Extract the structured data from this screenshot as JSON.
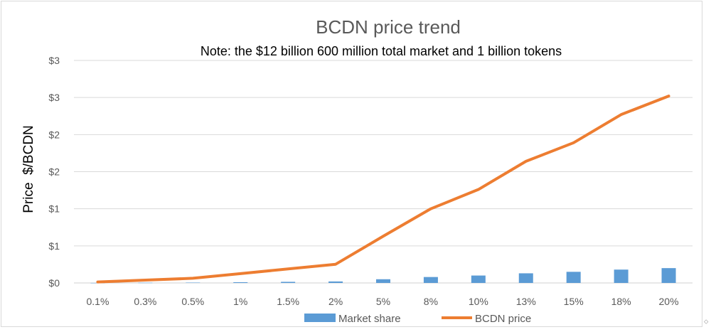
{
  "chart_data": {
    "type": "bar+line",
    "title": "BCDN price trend",
    "subtitle": "Note: the $12 billion 600 million total market and 1 billion tokens",
    "ylabel": "Price  $/BCDN",
    "xlabel": "",
    "categories": [
      "0.1%",
      "0.3%",
      "0.5%",
      "1%",
      "1.5%",
      "2%",
      "5%",
      "8%",
      "10%",
      "13%",
      "15%",
      "18%",
      "20%"
    ],
    "y_tick_labels": [
      "$0",
      "$1",
      "$1",
      "$2",
      "$2",
      "$3",
      "$3"
    ],
    "ylim": [
      0,
      3
    ],
    "grid": true,
    "legend_position": "bottom",
    "series": [
      {
        "name": "Market share",
        "type": "bar",
        "color": "#5b9bd5",
        "values": [
          0.001,
          0.003,
          0.005,
          0.01,
          0.015,
          0.02,
          0.05,
          0.08,
          0.1,
          0.13,
          0.15,
          0.18,
          0.2
        ]
      },
      {
        "name": "BCDN price",
        "type": "line",
        "color": "#ed7d31",
        "values": [
          0.013,
          0.038,
          0.063,
          0.126,
          0.189,
          0.252,
          0.63,
          1.0,
          1.26,
          1.64,
          1.89,
          2.27,
          2.52
        ]
      }
    ]
  },
  "corner_mark": "⬦"
}
